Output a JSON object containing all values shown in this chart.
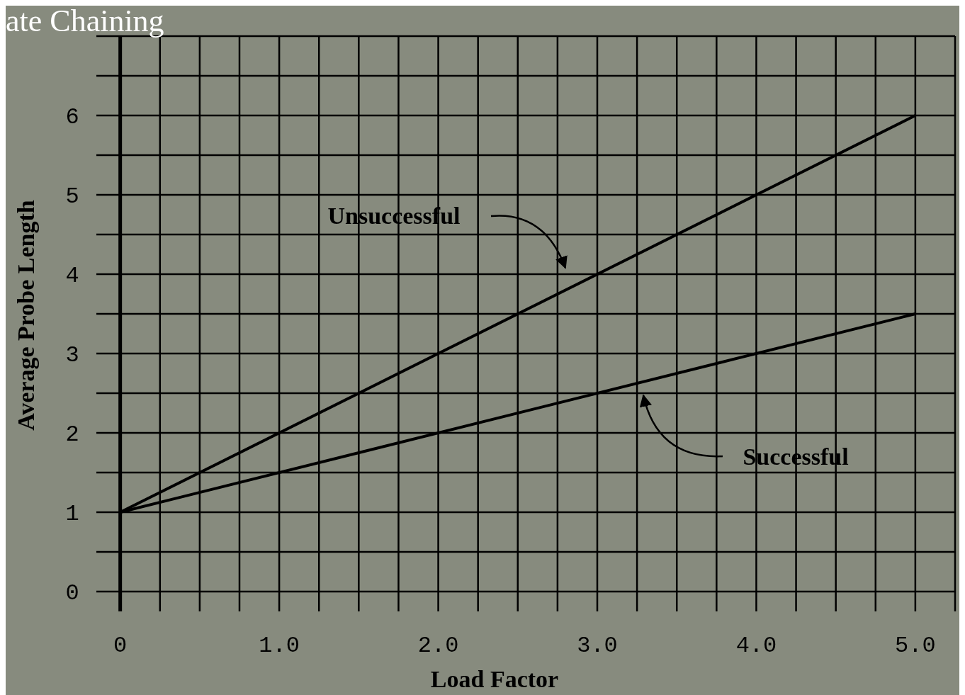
{
  "chart_data": {
    "type": "line",
    "title": "ate Chaining",
    "xlabel": "Load Factor",
    "ylabel": "Average Probe Length",
    "x": [
      0,
      5
    ],
    "series": [
      {
        "color": "#000000",
        "values": [
          1,
          6
        ]
      },
      {
        "color": "#000000",
        "values": [
          1,
          3.5
        ]
      }
    ],
    "xlim": [
      -0.15,
      5.25
    ],
    "ylim": [
      -0.25,
      7
    ],
    "xticks": [
      0,
      {
        "value": 0.25,
        "label": null
      },
      {
        "value": 0.5,
        "label": null
      },
      {
        "value": 0.75,
        "label": null
      },
      {
        "value": 1,
        "label": "1.0"
      },
      {
        "value": 1.25,
        "label": null
      },
      {
        "value": 1.5,
        "label": null
      },
      {
        "value": 1.75,
        "label": null
      },
      {
        "value": 2,
        "label": "2.0"
      },
      {
        "value": 2.25,
        "label": null
      },
      {
        "value": 2.5,
        "label": null
      },
      {
        "value": 2.75,
        "label": null
      },
      {
        "value": 3,
        "label": "3.0"
      },
      {
        "value": 3.25,
        "label": null
      },
      {
        "value": 3.5,
        "label": null
      },
      {
        "value": 3.75,
        "label": null
      },
      {
        "value": 4,
        "label": "4.0"
      },
      {
        "value": 4.25,
        "label": null
      },
      {
        "value": 4.5,
        "label": null
      },
      {
        "value": 4.75,
        "label": null
      },
      {
        "value": 5,
        "label": "5.0"
      },
      {
        "value": 5.25,
        "label": null
      }
    ],
    "yticks": [
      0,
      {
        "value": 0.5,
        "label": null
      },
      1,
      {
        "value": 1.5,
        "label": null
      },
      2,
      {
        "value": 2.5,
        "label": null
      },
      3,
      {
        "value": 3.5,
        "label": null
      },
      4,
      {
        "value": 4.5,
        "label": null
      },
      5,
      {
        "value": 5.5,
        "label": null
      },
      6,
      {
        "value": 6.5,
        "label": null
      },
      {
        "value": 7,
        "label": null
      }
    ],
    "grid": true,
    "marker": "none",
    "line_style": "solid",
    "annotations": [
      "Unsuccessful",
      "Successful"
    ]
  }
}
